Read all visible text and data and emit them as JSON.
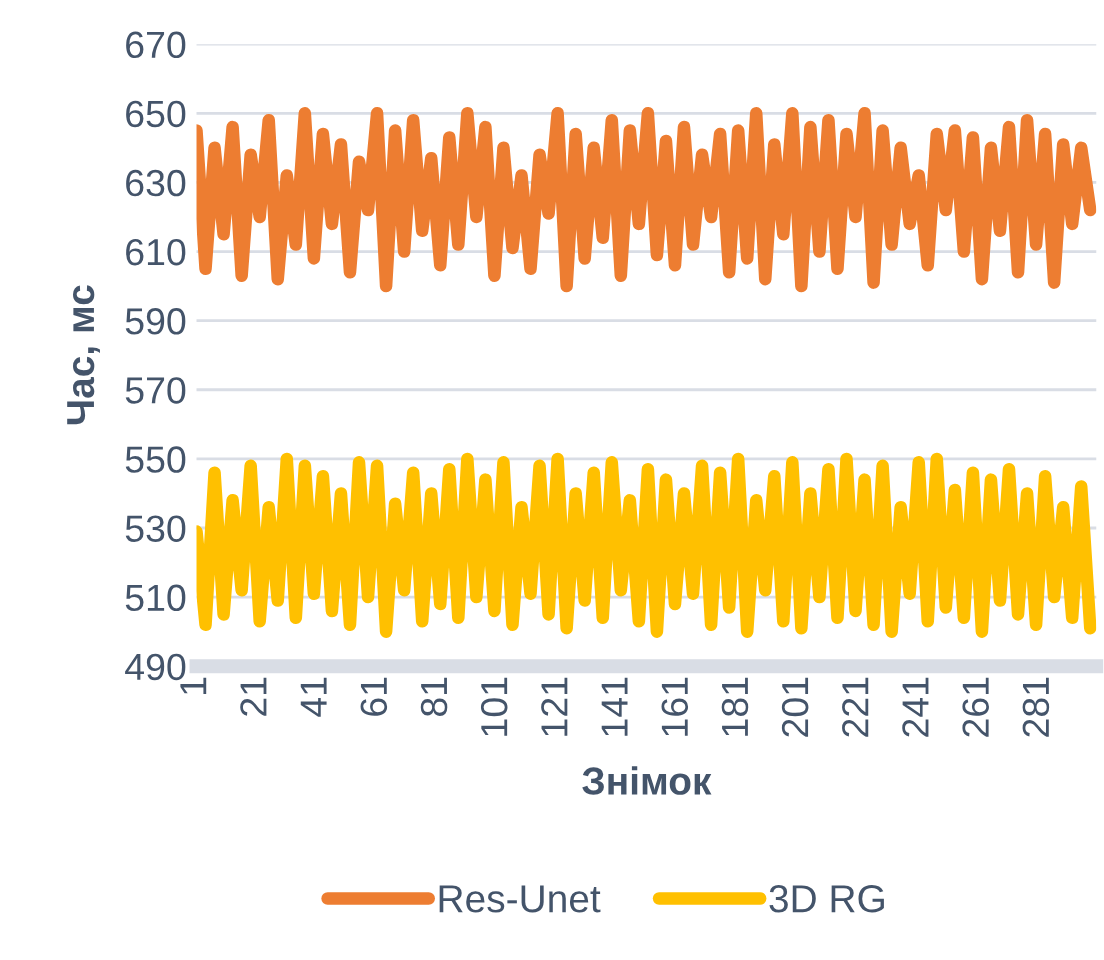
{
  "chart_data": {
    "type": "line",
    "xlabel": "Знімок",
    "ylabel": "Час, мс",
    "x": [
      1,
      4,
      7,
      10,
      13,
      16,
      19,
      22,
      25,
      28,
      31,
      34,
      37,
      40,
      43,
      46,
      49,
      52,
      55,
      58,
      61,
      64,
      67,
      70,
      73,
      76,
      79,
      82,
      85,
      88,
      91,
      94,
      97,
      100,
      103,
      106,
      109,
      112,
      115,
      118,
      121,
      124,
      127,
      130,
      133,
      136,
      139,
      142,
      145,
      148,
      151,
      154,
      157,
      160,
      163,
      166,
      169,
      172,
      175,
      178,
      181,
      184,
      187,
      190,
      193,
      196,
      199,
      202,
      205,
      208,
      211,
      214,
      217,
      220,
      223,
      226,
      229,
      232,
      235,
      238,
      241,
      244,
      247,
      250,
      253,
      256,
      259,
      262,
      265,
      268,
      271,
      274,
      277,
      280,
      283,
      286,
      289,
      292,
      295,
      298
    ],
    "series": [
      {
        "name": "Res-Unet",
        "color": "#ed7d31",
        "values": [
          645,
          605,
          640,
          615,
          646,
          603,
          638,
          620,
          648,
          602,
          632,
          612,
          650,
          608,
          644,
          618,
          641,
          604,
          636,
          622,
          650,
          600,
          645,
          610,
          648,
          616,
          637,
          606,
          643,
          612,
          650,
          620,
          646,
          603,
          640,
          611,
          632,
          605,
          638,
          621,
          650,
          600,
          644,
          608,
          640,
          614,
          648,
          603,
          645,
          618,
          650,
          609,
          642,
          606,
          646,
          612,
          638,
          620,
          644,
          604,
          645,
          608,
          650,
          602,
          641,
          615,
          650,
          600,
          646,
          610,
          648,
          605,
          644,
          620,
          650,
          601,
          645,
          612,
          640,
          618,
          632,
          606,
          644,
          622,
          645,
          610,
          643,
          602,
          640,
          616,
          646,
          604,
          648,
          612,
          644,
          601,
          641,
          618,
          640,
          622
        ]
      },
      {
        "name": "3D RG",
        "color": "#ffc000",
        "values": [
          529,
          502,
          546,
          505,
          538,
          512,
          548,
          503,
          536,
          509,
          550,
          504,
          548,
          511,
          545,
          506,
          540,
          502,
          549,
          510,
          548,
          500,
          537,
          512,
          546,
          503,
          540,
          508,
          547,
          504,
          550,
          510,
          544,
          506,
          549,
          502,
          536,
          511,
          548,
          505,
          550,
          501,
          540,
          509,
          546,
          504,
          549,
          512,
          538,
          503,
          547,
          500,
          544,
          508,
          540,
          511,
          548,
          502,
          546,
          507,
          550,
          500,
          538,
          512,
          545,
          503,
          549,
          501,
          540,
          510,
          547,
          504,
          550,
          506,
          544,
          502,
          548,
          500,
          536,
          511,
          549,
          503,
          550,
          507,
          541,
          504,
          546,
          500,
          544,
          509,
          547,
          505,
          540,
          502,
          545,
          510,
          536,
          504,
          542,
          501
        ]
      }
    ],
    "xlim": [
      1,
      300
    ],
    "xticks": [
      1,
      21,
      41,
      61,
      81,
      101,
      121,
      141,
      161,
      181,
      201,
      221,
      241,
      261,
      281
    ],
    "ylim": [
      490,
      670
    ],
    "yticks": [
      490,
      510,
      530,
      550,
      570,
      590,
      610,
      630,
      650,
      670
    ],
    "grid": "y",
    "legend": "bottom",
    "marker": "none",
    "line_style": "solid"
  }
}
